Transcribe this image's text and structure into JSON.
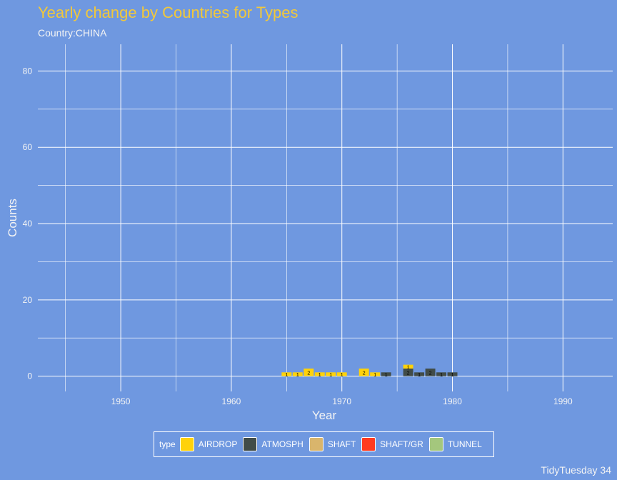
{
  "chart_data": {
    "type": "bar",
    "title": "Yearly change by Countries for Types",
    "subtitle": "Country:CHINA",
    "xlabel": "Year",
    "ylabel": "Counts",
    "caption": "TidyTuesday 34",
    "xlim": [
      1942.5,
      1994.5
    ],
    "ylim": [
      -4,
      87
    ],
    "xticks": [
      1950,
      1960,
      1970,
      1980,
      1990
    ],
    "yticks": [
      0,
      20,
      40,
      60,
      80
    ],
    "grid": true,
    "stacked": true,
    "legend": {
      "title": "type",
      "position": "bottom",
      "items": [
        {
          "name": "AIRDROP",
          "color": "#ffd20a"
        },
        {
          "name": "ATMOSPH",
          "color": "#414c48"
        },
        {
          "name": "SHAFT",
          "color": "#d9b56c"
        },
        {
          "name": "SHAFT/GR",
          "color": "#ff3b1f"
        },
        {
          "name": "TUNNEL",
          "color": "#a4c77d"
        }
      ]
    },
    "bars": [
      {
        "year": 1965,
        "type": "AIRDROP",
        "value": 1
      },
      {
        "year": 1966,
        "type": "AIRDROP",
        "value": 1
      },
      {
        "year": 1967,
        "type": "AIRDROP",
        "value": 2
      },
      {
        "year": 1968,
        "type": "AIRDROP",
        "value": 1
      },
      {
        "year": 1969,
        "type": "AIRDROP",
        "value": 1
      },
      {
        "year": 1970,
        "type": "AIRDROP",
        "value": 1
      },
      {
        "year": 1972,
        "type": "AIRDROP",
        "value": 2
      },
      {
        "year": 1973,
        "type": "AIRDROP",
        "value": 1
      },
      {
        "year": 1974,
        "type": "ATMOSPH",
        "value": 1
      },
      {
        "year": 1976,
        "type": "ATMOSPH",
        "value": 2
      },
      {
        "year": 1976,
        "type": "AIRDROP",
        "value": 1
      },
      {
        "year": 1977,
        "type": "ATMOSPH",
        "value": 1
      },
      {
        "year": 1978,
        "type": "ATMOSPH",
        "value": 2
      },
      {
        "year": 1979,
        "type": "ATMOSPH",
        "value": 1
      },
      {
        "year": 1980,
        "type": "ATMOSPH",
        "value": 1
      }
    ]
  }
}
